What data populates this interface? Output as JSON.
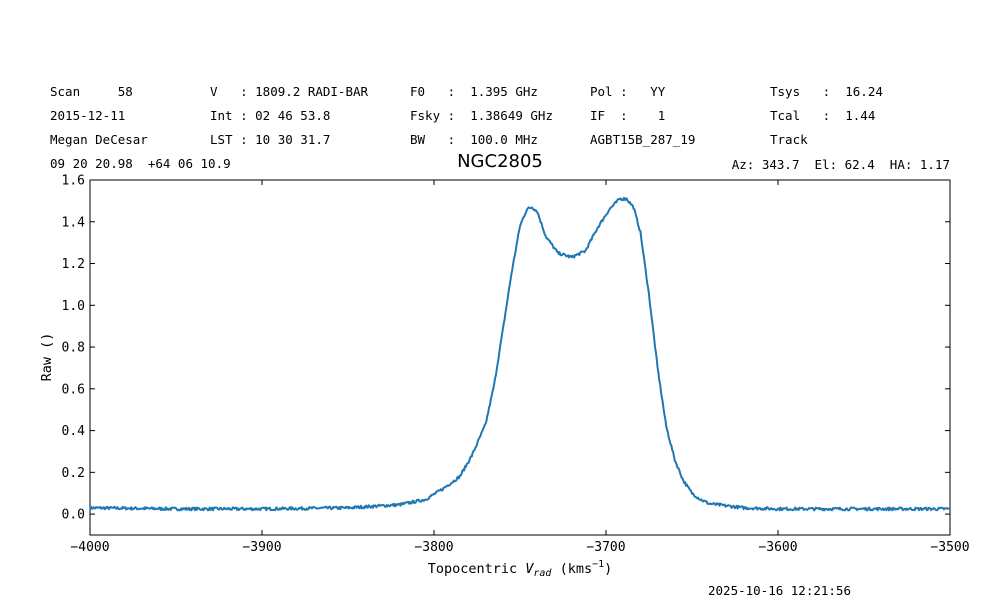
{
  "header": {
    "col1": {
      "r1": "Scan     58",
      "r2": "2015-12-11",
      "r3": "Megan DeCesar",
      "r4": "09 20 20.98  +64 06 10.9"
    },
    "col2": {
      "r1": "V   : 1809.2 RADI-BAR",
      "r2": "Int : 02 46 53.8",
      "r3": "LST : 10 30 31.7"
    },
    "col3": {
      "r1": "F0   :  1.395 GHz",
      "r2": "Fsky :  1.38649 GHz",
      "r3": "BW   :  100.0 MHz"
    },
    "col4": {
      "r1": "Pol :   YY",
      "r2": "IF  :    1",
      "r3": "AGBT15B_287_19"
    },
    "col5": {
      "r1": "Tsys   :  16.24",
      "r2": "Tcal   :  1.44",
      "r3": "Track"
    },
    "azimuth_line": "Az: 343.7  El: 62.4  HA: 1.17",
    "timestamp": "2025-10-16 12:21:56"
  },
  "chart_data": {
    "type": "line",
    "title": "NGC2805",
    "xlabel": "Topocentric V_rad (kms^-1)",
    "xlabel_parts": {
      "main": "Topocentric ",
      "v": "V",
      "sub": "rad",
      "units": " (kms",
      "sup": "−1",
      "close": ")"
    },
    "ylabel": "Raw ()",
    "xlim": [
      -4000,
      -3500
    ],
    "ylim": [
      -0.1,
      1.6
    ],
    "xticks": [
      -4000,
      -3900,
      -3800,
      -3700,
      -3600,
      -3500
    ],
    "xtick_labels": [
      "−4000",
      "−3900",
      "−3800",
      "−3700",
      "−3600",
      "−3500"
    ],
    "yticks": [
      0.0,
      0.2,
      0.4,
      0.6,
      0.8,
      1.0,
      1.2,
      1.4,
      1.6
    ],
    "ytick_labels": [
      "0.0",
      "0.2",
      "0.4",
      "0.6",
      "0.8",
      "1.0",
      "1.2",
      "1.4",
      "1.6"
    ],
    "grid": false,
    "line_color": "#1f77b4",
    "series": [
      {
        "x": [
          -4000,
          -3950,
          -3900,
          -3850,
          -3820,
          -3805,
          -3795,
          -3785,
          -3778,
          -3770,
          -3765,
          -3760,
          -3755,
          -3750,
          -3746,
          -3743,
          -3740,
          -3735,
          -3728,
          -3720,
          -3712,
          -3705,
          -3698,
          -3692,
          -3688,
          -3684,
          -3680,
          -3675,
          -3670,
          -3665,
          -3660,
          -3655,
          -3650,
          -3645,
          -3640,
          -3630,
          -3620,
          -3600,
          -3560,
          -3500
        ],
        "y": [
          0.03,
          0.025,
          0.025,
          0.03,
          0.045,
          0.07,
          0.12,
          0.18,
          0.28,
          0.43,
          0.62,
          0.88,
          1.15,
          1.38,
          1.46,
          1.47,
          1.45,
          1.33,
          1.25,
          1.23,
          1.26,
          1.37,
          1.46,
          1.51,
          1.51,
          1.47,
          1.35,
          1.05,
          0.7,
          0.42,
          0.26,
          0.16,
          0.1,
          0.07,
          0.05,
          0.04,
          0.03,
          0.025,
          0.025,
          0.025
        ]
      }
    ]
  }
}
